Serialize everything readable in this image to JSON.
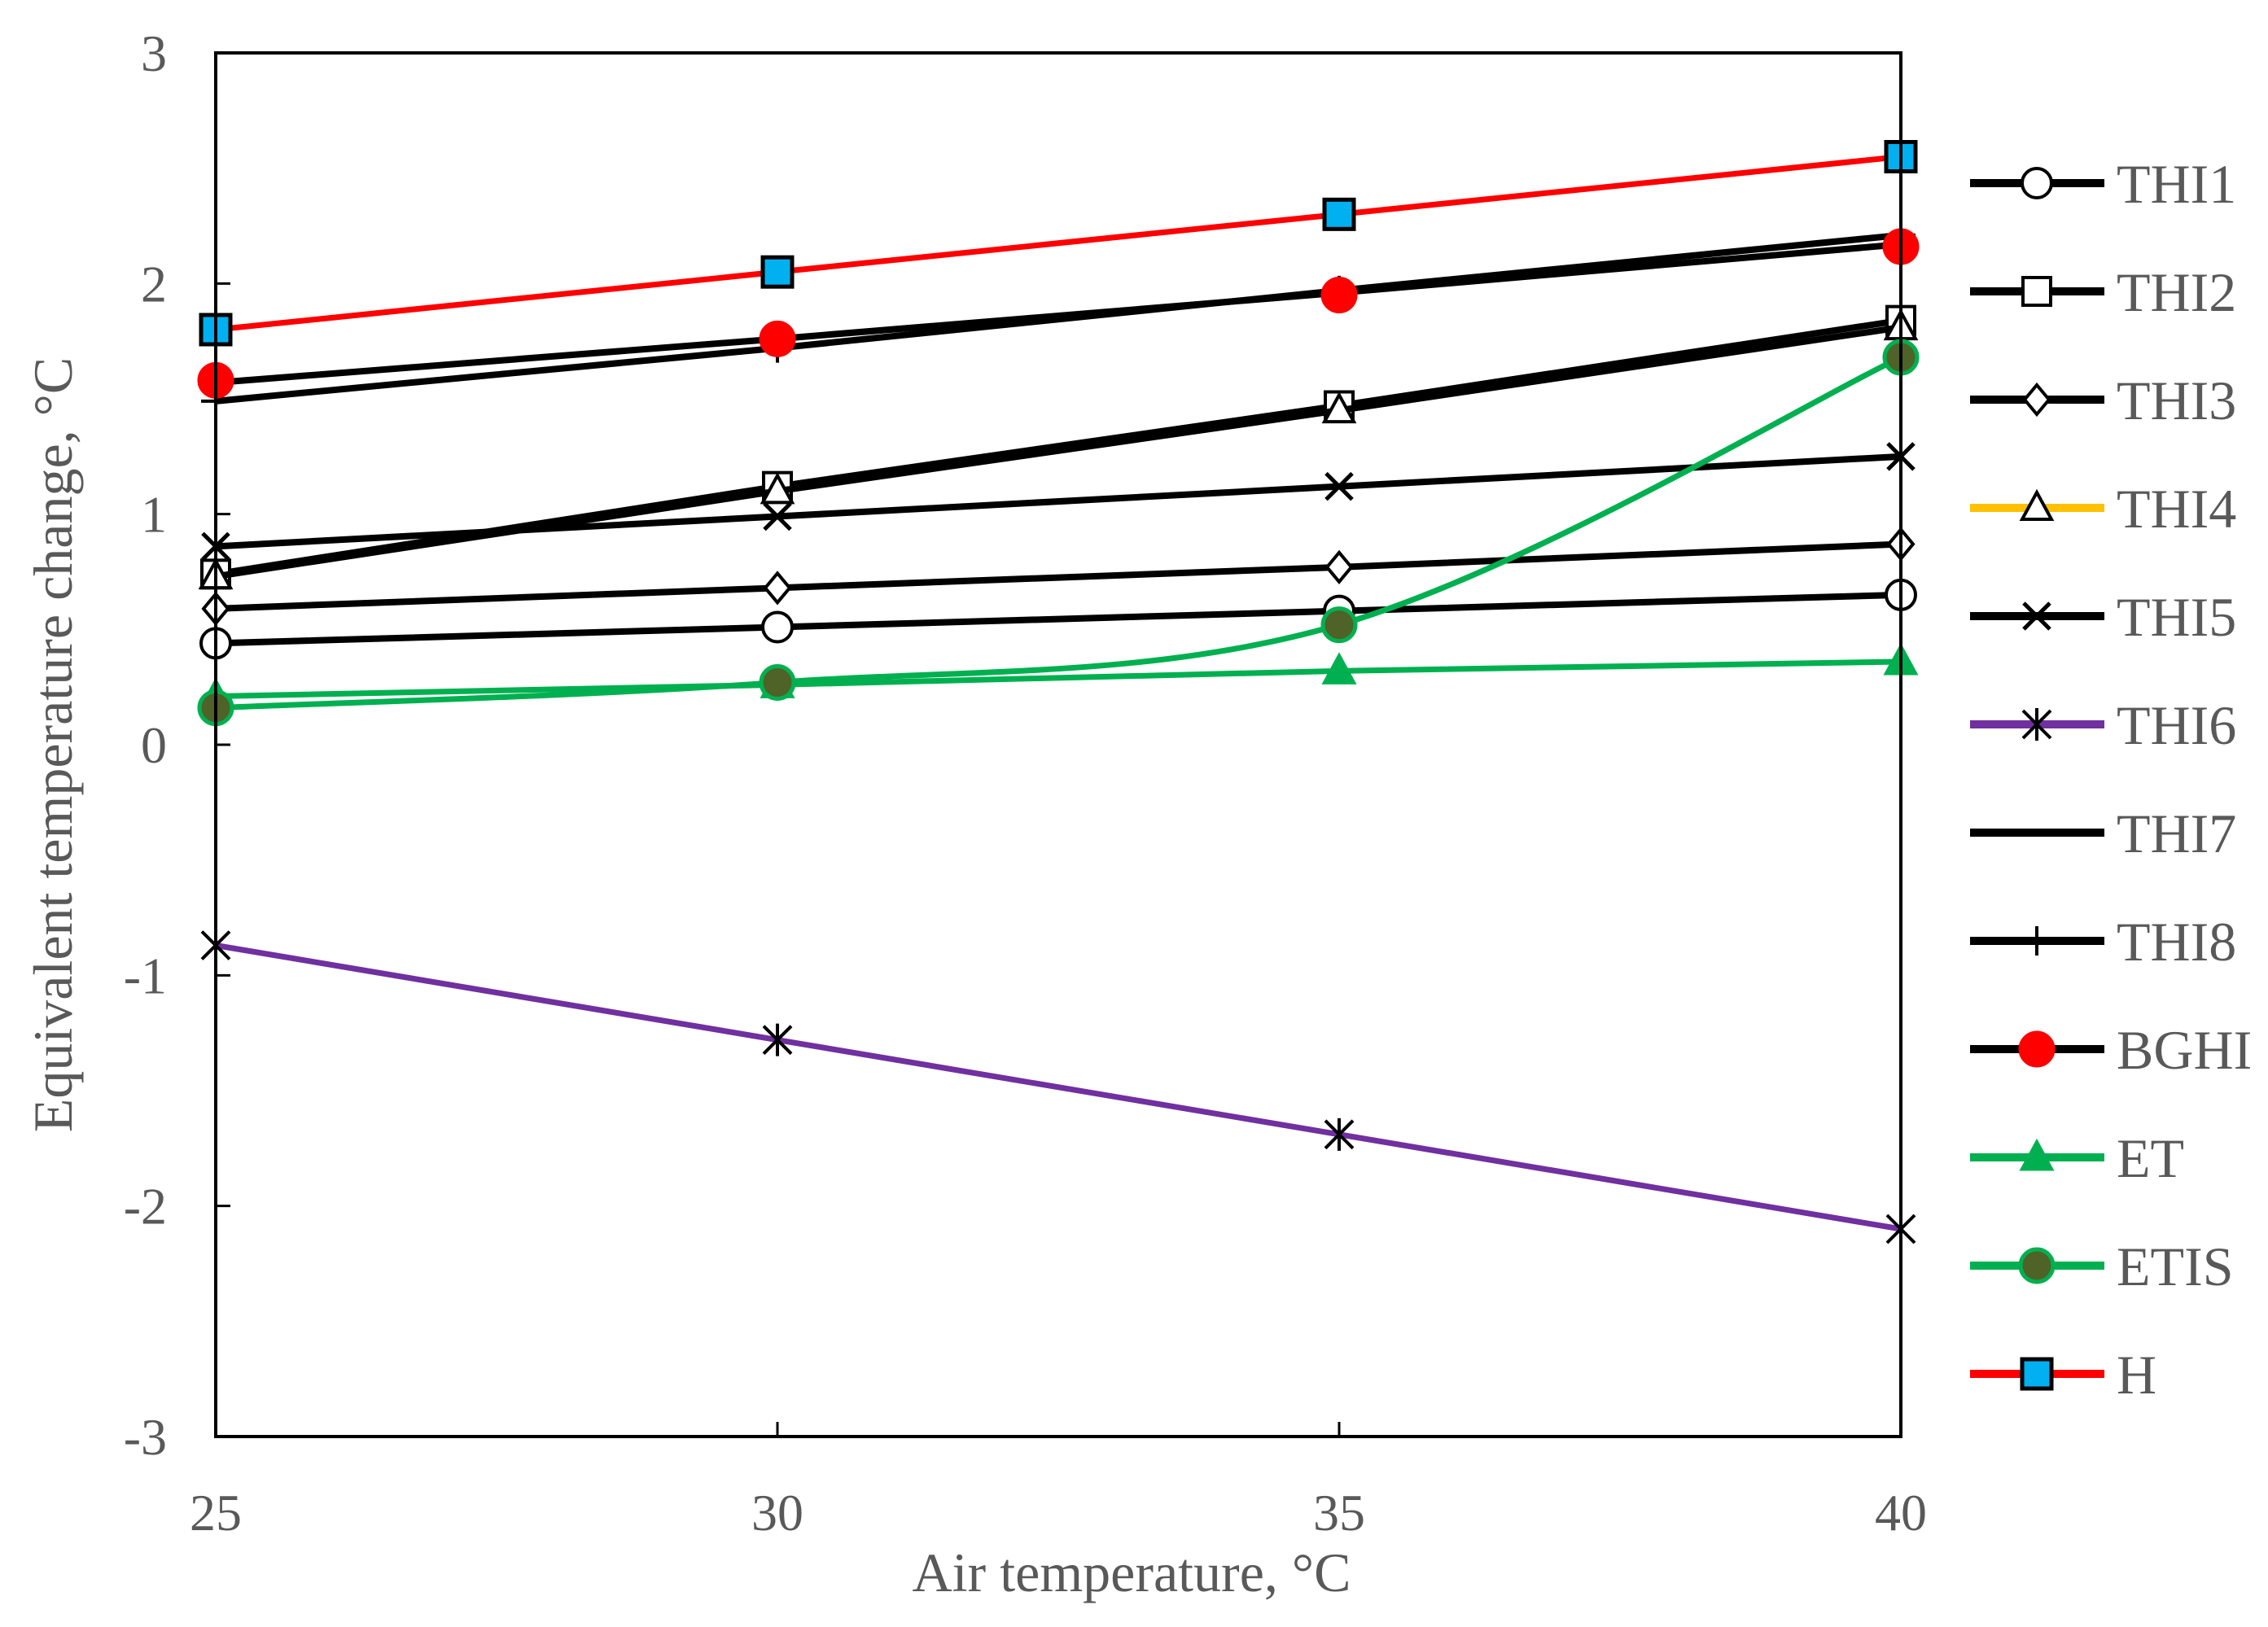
{
  "chart_data": {
    "type": "line",
    "title": "",
    "xlabel": "Air temperature, °C",
    "ylabel": "Equivalent temperature change, °C",
    "x": [
      25,
      30,
      35,
      40
    ],
    "xlim": [
      25,
      40
    ],
    "ylim": [
      -3,
      3
    ],
    "xticks": [
      "25",
      "30",
      "35",
      "40"
    ],
    "yticks": [
      "3",
      "2",
      "1",
      "0",
      "-1",
      "-2",
      "-3"
    ],
    "grid": false,
    "legend": "right",
    "series": [
      {
        "name": "THI1",
        "values": [
          0.44,
          0.51,
          0.58,
          0.65
        ],
        "line": "#000000",
        "marker": "circle-open",
        "marker_fill": "#ffffff",
        "marker_stroke": "#000000",
        "smooth": false
      },
      {
        "name": "THI2",
        "values": [
          0.74,
          1.12,
          1.47,
          1.84
        ],
        "line": "#000000",
        "marker": "square-open",
        "marker_fill": "#ffffff",
        "marker_stroke": "#000000",
        "smooth": false
      },
      {
        "name": "THI3",
        "values": [
          0.59,
          0.68,
          0.77,
          0.87
        ],
        "line": "#000000",
        "marker": "diamond-open",
        "marker_fill": "#ffffff",
        "marker_stroke": "#000000",
        "smooth": false
      },
      {
        "name": "THI4",
        "values": [
          0.73,
          1.1,
          1.45,
          1.81
        ],
        "line": "#000000",
        "legend_line": "#ffc000",
        "marker": "triangle-open",
        "marker_fill": "#ffffff",
        "marker_stroke": "#000000",
        "smooth": false
      },
      {
        "name": "THI5",
        "values": [
          0.86,
          0.99,
          1.12,
          1.25
        ],
        "line": "#000000",
        "marker": "x",
        "marker_fill": "none",
        "marker_stroke": "#000000",
        "smooth": false
      },
      {
        "name": "THI6",
        "values": [
          -0.87,
          -1.28,
          -1.69,
          -2.1
        ],
        "line": "#7030a0",
        "marker": "star",
        "marker_fill": "none",
        "marker_stroke": "#000000",
        "smooth": false
      },
      {
        "name": "THI7",
        "values": [
          1.57,
          1.76,
          1.96,
          2.17
        ],
        "line": "#000000",
        "marker": "dash",
        "marker_fill": "none",
        "marker_stroke": "#000000",
        "smooth": false
      },
      {
        "name": "THI8",
        "values": [
          1.49,
          1.72,
          1.97,
          2.21
        ],
        "line": "#000000",
        "marker": "plus",
        "marker_fill": "none",
        "marker_stroke": "#000000",
        "smooth": false
      },
      {
        "name": "BGHI",
        "values": [
          1.58,
          1.76,
          1.95,
          2.16
        ],
        "line": "#000000",
        "marker": "circle-filled",
        "marker_fill": "#ff0000",
        "marker_stroke": "#ff0000",
        "smooth": false,
        "hide_line": true
      },
      {
        "name": "ET",
        "values": [
          0.21,
          0.26,
          0.32,
          0.36
        ],
        "line": "#00b050",
        "marker": "triangle-filled",
        "marker_fill": "#00b050",
        "marker_stroke": "#00b050",
        "smooth": false
      },
      {
        "name": "ETIS",
        "values": [
          0.16,
          0.27,
          0.52,
          1.68
        ],
        "line": "#00b050",
        "marker": "circle-filled",
        "marker_fill": "#4f6228",
        "marker_stroke": "#00b050",
        "smooth": true
      },
      {
        "name": "H",
        "values": [
          1.8,
          2.05,
          2.3,
          2.55
        ],
        "line": "#ff0000",
        "marker": "square-filled",
        "marker_fill": "#00b0f0",
        "marker_stroke": "#000000",
        "smooth": false
      }
    ]
  }
}
